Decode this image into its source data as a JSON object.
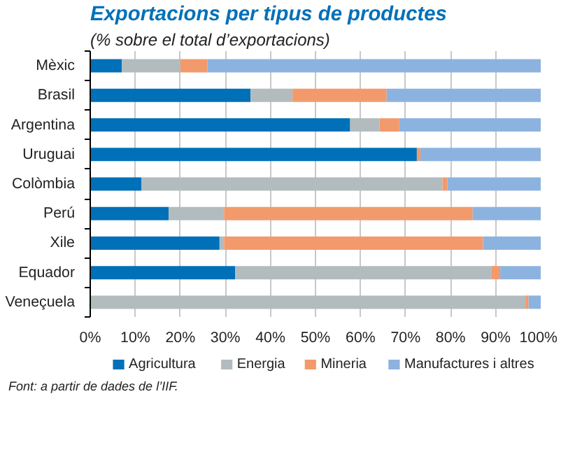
{
  "chart_data": {
    "type": "bar",
    "orientation": "horizontal",
    "stacked": true,
    "title": "Exportacions per tipus de productes",
    "subtitle": "(% sobre el total d’exportacions)",
    "categories": [
      "Mèxic",
      "Brasil",
      "Argentina",
      "Uruguai",
      "Colòmbia",
      "Perú",
      "Xile",
      "Equador",
      "Veneçuela"
    ],
    "series": [
      {
        "name": "Agricultura",
        "color": "#0070b8",
        "values": [
          7,
          35.6,
          57.7,
          72.5,
          11.4,
          17.4,
          28.7,
          32.2,
          0
        ]
      },
      {
        "name": "Energia",
        "color": "#b2bcbf",
        "values": [
          13,
          9.3,
          6.5,
          0,
          66.8,
          12.3,
          1,
          56.8,
          96.6
        ]
      },
      {
        "name": "Mineria",
        "color": "#f39a6c",
        "values": [
          6,
          20.9,
          4.4,
          0.8,
          1.1,
          55.2,
          57.5,
          2,
          0.7
        ]
      },
      {
        "name": "Manufactures i altres",
        "color": "#8cb3e0",
        "values": [
          74,
          34.2,
          31.4,
          26.7,
          20.7,
          15.1,
          12.8,
          9,
          2.7
        ]
      }
    ],
    "xlim": [
      0,
      100
    ],
    "xticks": [
      {
        "value": 0,
        "label": "0%"
      },
      {
        "value": 10,
        "label": "10%"
      },
      {
        "value": 20,
        "label": "20%"
      },
      {
        "value": 30,
        "label": "30%"
      },
      {
        "value": 40,
        "label": "40%"
      },
      {
        "value": 50,
        "label": "50%"
      },
      {
        "value": 60,
        "label": "60%"
      },
      {
        "value": 70,
        "label": "70%"
      },
      {
        "value": 80,
        "label": "80%"
      },
      {
        "value": 90,
        "label": "90%"
      },
      {
        "value": 100,
        "label": "100%"
      }
    ],
    "grid": "x",
    "legend": "bottom",
    "annotations": [
      "Font: a partir de dades de l’IIF."
    ]
  }
}
